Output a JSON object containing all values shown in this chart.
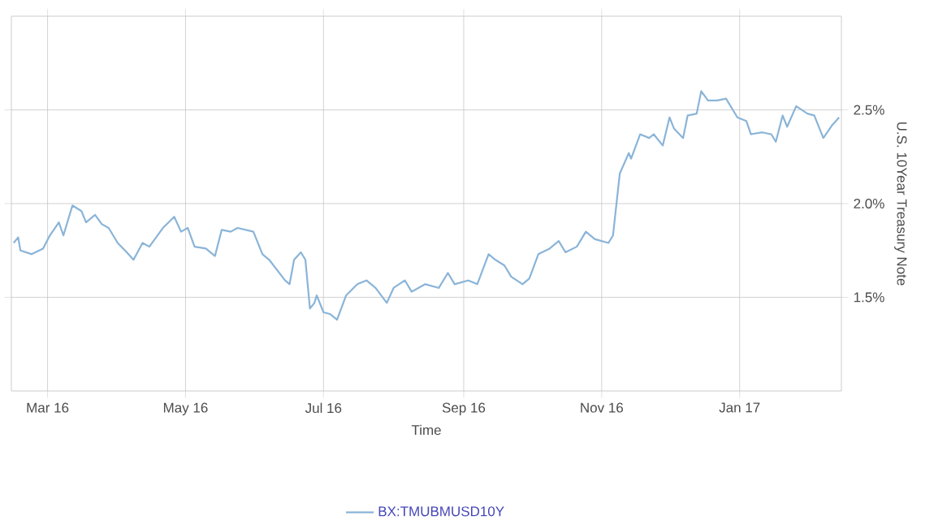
{
  "chart_data": {
    "type": "line",
    "xlabel": "Time",
    "ylabel": "U.S. 10Year Treasury Note",
    "xlim": [
      "2016-02-14",
      "2017-02-15"
    ],
    "ylim": [
      1.0,
      3.0
    ],
    "xticks": [
      {
        "value": "2016-03-01",
        "label": "Mar 16"
      },
      {
        "value": "2016-05-01",
        "label": "May 16"
      },
      {
        "value": "2016-07-01",
        "label": "Jul 16"
      },
      {
        "value": "2016-09-01",
        "label": "Sep 16"
      },
      {
        "value": "2016-11-01",
        "label": "Nov 16"
      },
      {
        "value": "2017-01-01",
        "label": "Jan 17"
      }
    ],
    "yticks": [
      {
        "value": 1.5,
        "label": "1.5%"
      },
      {
        "value": 2.0,
        "label": "2.0%"
      },
      {
        "value": 2.5,
        "label": "2.5%"
      }
    ],
    "grid": true,
    "legend": "bottom",
    "marker": "none",
    "line_style": "solid",
    "series": [
      {
        "name": "BX:TMUBMUSD10Y",
        "color": "#8ab4d8",
        "x": [
          "2016-02-15",
          "2016-02-17",
          "2016-02-18",
          "2016-02-23",
          "2016-02-28",
          "2016-03-02",
          "2016-03-06",
          "2016-03-08",
          "2016-03-12",
          "2016-03-16",
          "2016-03-18",
          "2016-03-22",
          "2016-03-25",
          "2016-03-28",
          "2016-04-01",
          "2016-04-05",
          "2016-04-08",
          "2016-04-12",
          "2016-04-15",
          "2016-04-21",
          "2016-04-26",
          "2016-04-29",
          "2016-05-02",
          "2016-05-05",
          "2016-05-10",
          "2016-05-14",
          "2016-05-17",
          "2016-05-21",
          "2016-05-24",
          "2016-05-31",
          "2016-06-04",
          "2016-06-07",
          "2016-06-14",
          "2016-06-16",
          "2016-06-18",
          "2016-06-21",
          "2016-06-23",
          "2016-06-25",
          "2016-06-27",
          "2016-06-28",
          "2016-07-01",
          "2016-07-04",
          "2016-07-07",
          "2016-07-11",
          "2016-07-16",
          "2016-07-20",
          "2016-07-24",
          "2016-07-29",
          "2016-08-01",
          "2016-08-06",
          "2016-08-09",
          "2016-08-15",
          "2016-08-21",
          "2016-08-25",
          "2016-08-28",
          "2016-09-03",
          "2016-09-07",
          "2016-09-12",
          "2016-09-15",
          "2016-09-19",
          "2016-09-22",
          "2016-09-27",
          "2016-09-30",
          "2016-10-04",
          "2016-10-09",
          "2016-10-13",
          "2016-10-16",
          "2016-10-21",
          "2016-10-25",
          "2016-10-29",
          "2016-11-04",
          "2016-11-06",
          "2016-11-09",
          "2016-11-13",
          "2016-11-14",
          "2016-11-18",
          "2016-11-22",
          "2016-11-24",
          "2016-11-28",
          "2016-12-01",
          "2016-12-03",
          "2016-12-07",
          "2016-12-09",
          "2016-12-13",
          "2016-12-15",
          "2016-12-18",
          "2016-12-22",
          "2016-12-26",
          "2016-12-31",
          "2017-01-04",
          "2017-01-06",
          "2017-01-11",
          "2017-01-15",
          "2017-01-17",
          "2017-01-20",
          "2017-01-22",
          "2017-01-26",
          "2017-01-31",
          "2017-02-03",
          "2017-02-07",
          "2017-02-11",
          "2017-02-14"
        ],
        "values": [
          1.79,
          1.82,
          1.75,
          1.73,
          1.76,
          1.83,
          1.9,
          1.83,
          1.99,
          1.96,
          1.9,
          1.94,
          1.89,
          1.87,
          1.79,
          1.74,
          1.7,
          1.79,
          1.77,
          1.87,
          1.93,
          1.85,
          1.87,
          1.77,
          1.76,
          1.72,
          1.86,
          1.85,
          1.87,
          1.85,
          1.73,
          1.7,
          1.59,
          1.57,
          1.7,
          1.74,
          1.7,
          1.44,
          1.47,
          1.51,
          1.42,
          1.41,
          1.38,
          1.51,
          1.57,
          1.59,
          1.55,
          1.47,
          1.55,
          1.59,
          1.53,
          1.57,
          1.55,
          1.63,
          1.57,
          1.59,
          1.57,
          1.73,
          1.7,
          1.67,
          1.61,
          1.57,
          1.6,
          1.73,
          1.76,
          1.8,
          1.74,
          1.77,
          1.85,
          1.81,
          1.79,
          1.83,
          2.16,
          2.27,
          2.24,
          2.37,
          2.35,
          2.37,
          2.31,
          2.46,
          2.4,
          2.35,
          2.47,
          2.48,
          2.6,
          2.55,
          2.55,
          2.56,
          2.46,
          2.44,
          2.37,
          2.38,
          2.37,
          2.33,
          2.47,
          2.41,
          2.52,
          2.48,
          2.47,
          2.35,
          2.42,
          2.46
        ]
      }
    ]
  }
}
